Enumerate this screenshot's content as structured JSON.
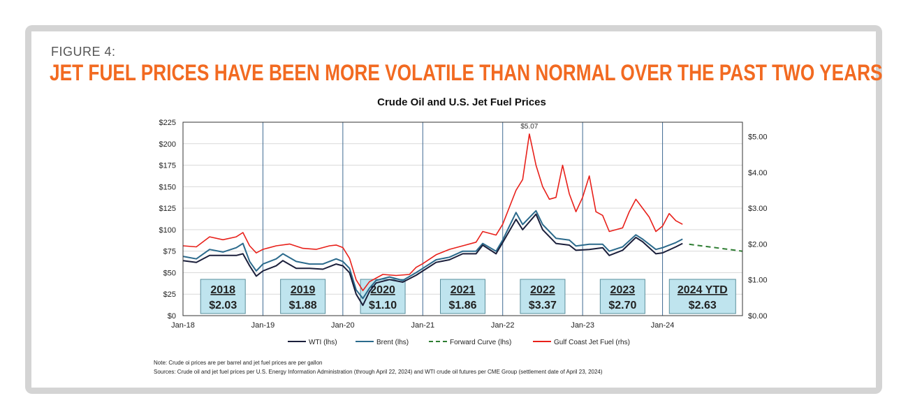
{
  "figure": {
    "label": "FIGURE 4:",
    "title": "JET FUEL PRICES HAVE BEEN MORE VOLATILE THAN NORMAL OVER THE PAST TWO YEARS",
    "note": "Note: Crude oi prices are per barrel and jet fuel prices are per gallon",
    "sources": "Sources: Crude oil and jet fuel prices per U.S. Energy Information Administration (through April 22, 2024) and WTI crude oil futures per CME Group (settlement date of April 23, 2024)"
  },
  "colors": {
    "title": "#f26a21",
    "wti": "#1b1f3b",
    "brent": "#2b6a8c",
    "forward": "#2e7d32",
    "jet": "#e8201a",
    "yearbox": "#bfe4ee"
  },
  "chart_data": {
    "type": "line",
    "title": "Crude Oil and U.S. Jet Fuel Prices",
    "x_ticks": [
      "Jan-18",
      "Jan-19",
      "Jan-20",
      "Jan-21",
      "Jan-22",
      "Jan-23",
      "Jan-24"
    ],
    "xlim": [
      "2018-01",
      "2025-01"
    ],
    "y_left": {
      "ylim": [
        0,
        225
      ],
      "ticks": [
        "$0",
        "$25",
        "$50",
        "$75",
        "$100",
        "$125",
        "$150",
        "$175",
        "$200",
        "$225"
      ]
    },
    "y_right": {
      "ylim": [
        0,
        5.4
      ],
      "ticks": [
        "$0.00",
        "$1.00",
        "$2.00",
        "$3.00",
        "$4.00",
        "$5.00"
      ]
    },
    "grid": true,
    "legend_position": "bottom",
    "peak_annotation": {
      "text": "$5.07",
      "x": "2022-05",
      "y": 5.07
    },
    "year_boxes": [
      {
        "year": "2018",
        "price": "$2.03"
      },
      {
        "year": "2019",
        "price": "$1.88"
      },
      {
        "year": "2020",
        "price": "$1.10"
      },
      {
        "year": "2021",
        "price": "$1.86"
      },
      {
        "year": "2022",
        "price": "$3.37"
      },
      {
        "year": "2023",
        "price": "$2.70"
      },
      {
        "year": "2024 YTD",
        "price": "$2.63"
      }
    ],
    "series": [
      {
        "name": "WTI (lhs)",
        "axis": "left",
        "style": "solid",
        "points": [
          [
            "2018-01",
            64
          ],
          [
            "2018-03",
            62
          ],
          [
            "2018-05",
            70
          ],
          [
            "2018-07",
            70
          ],
          [
            "2018-09",
            70
          ],
          [
            "2018-10",
            72
          ],
          [
            "2018-11",
            58
          ],
          [
            "2018-12",
            46
          ],
          [
            "2019-01",
            52
          ],
          [
            "2019-03",
            58
          ],
          [
            "2019-04",
            64
          ],
          [
            "2019-06",
            55
          ],
          [
            "2019-08",
            55
          ],
          [
            "2019-10",
            54
          ],
          [
            "2019-12",
            60
          ],
          [
            "2020-01",
            58
          ],
          [
            "2020-02",
            50
          ],
          [
            "2020-03",
            25
          ],
          [
            "2020-04",
            12
          ],
          [
            "2020-05",
            28
          ],
          [
            "2020-06",
            38
          ],
          [
            "2020-08",
            42
          ],
          [
            "2020-10",
            39
          ],
          [
            "2020-12",
            47
          ],
          [
            "2021-01",
            52
          ],
          [
            "2021-03",
            62
          ],
          [
            "2021-05",
            65
          ],
          [
            "2021-07",
            72
          ],
          [
            "2021-09",
            72
          ],
          [
            "2021-10",
            82
          ],
          [
            "2021-12",
            72
          ],
          [
            "2022-01",
            85
          ],
          [
            "2022-03",
            112
          ],
          [
            "2022-04",
            100
          ],
          [
            "2022-06",
            118
          ],
          [
            "2022-07",
            100
          ],
          [
            "2022-09",
            84
          ],
          [
            "2022-11",
            82
          ],
          [
            "2022-12",
            76
          ],
          [
            "2023-02",
            77
          ],
          [
            "2023-04",
            79
          ],
          [
            "2023-05",
            70
          ],
          [
            "2023-07",
            76
          ],
          [
            "2023-09",
            91
          ],
          [
            "2023-10",
            86
          ],
          [
            "2023-12",
            72
          ],
          [
            "2024-01",
            73
          ],
          [
            "2024-03",
            80
          ],
          [
            "2024-04",
            84
          ]
        ]
      },
      {
        "name": "Brent (lhs)",
        "axis": "left",
        "style": "solid",
        "points": [
          [
            "2018-01",
            69
          ],
          [
            "2018-03",
            66
          ],
          [
            "2018-05",
            77
          ],
          [
            "2018-07",
            74
          ],
          [
            "2018-09",
            79
          ],
          [
            "2018-10",
            84
          ],
          [
            "2018-11",
            63
          ],
          [
            "2018-12",
            52
          ],
          [
            "2019-01",
            60
          ],
          [
            "2019-03",
            66
          ],
          [
            "2019-04",
            72
          ],
          [
            "2019-06",
            63
          ],
          [
            "2019-08",
            60
          ],
          [
            "2019-10",
            60
          ],
          [
            "2019-12",
            66
          ],
          [
            "2020-01",
            63
          ],
          [
            "2020-02",
            55
          ],
          [
            "2020-03",
            30
          ],
          [
            "2020-04",
            20
          ],
          [
            "2020-05",
            32
          ],
          [
            "2020-06",
            41
          ],
          [
            "2020-08",
            45
          ],
          [
            "2020-10",
            41
          ],
          [
            "2020-12",
            50
          ],
          [
            "2021-01",
            55
          ],
          [
            "2021-03",
            65
          ],
          [
            "2021-05",
            68
          ],
          [
            "2021-07",
            75
          ],
          [
            "2021-09",
            75
          ],
          [
            "2021-10",
            84
          ],
          [
            "2021-12",
            75
          ],
          [
            "2022-01",
            88
          ],
          [
            "2022-03",
            120
          ],
          [
            "2022-04",
            106
          ],
          [
            "2022-06",
            122
          ],
          [
            "2022-07",
            106
          ],
          [
            "2022-09",
            90
          ],
          [
            "2022-11",
            88
          ],
          [
            "2022-12",
            81
          ],
          [
            "2023-02",
            83
          ],
          [
            "2023-04",
            83
          ],
          [
            "2023-05",
            75
          ],
          [
            "2023-07",
            80
          ],
          [
            "2023-09",
            94
          ],
          [
            "2023-10",
            89
          ],
          [
            "2023-12",
            77
          ],
          [
            "2024-01",
            79
          ],
          [
            "2024-03",
            85
          ],
          [
            "2024-04",
            89
          ]
        ]
      },
      {
        "name": "Forward Curve (lhs)",
        "axis": "left",
        "style": "dashed",
        "points": [
          [
            "2024-05",
            83
          ],
          [
            "2024-08",
            80
          ],
          [
            "2024-11",
            77
          ],
          [
            "2025-01",
            75
          ]
        ]
      },
      {
        "name": "Gulf Coast Jet Fuel (rhs)",
        "axis": "right",
        "style": "solid",
        "points": [
          [
            "2018-01",
            1.95
          ],
          [
            "2018-03",
            1.92
          ],
          [
            "2018-05",
            2.2
          ],
          [
            "2018-07",
            2.12
          ],
          [
            "2018-09",
            2.2
          ],
          [
            "2018-10",
            2.32
          ],
          [
            "2018-11",
            1.95
          ],
          [
            "2018-12",
            1.75
          ],
          [
            "2019-01",
            1.85
          ],
          [
            "2019-03",
            1.95
          ],
          [
            "2019-05",
            2.0
          ],
          [
            "2019-07",
            1.88
          ],
          [
            "2019-09",
            1.85
          ],
          [
            "2019-11",
            1.95
          ],
          [
            "2019-12",
            1.97
          ],
          [
            "2020-01",
            1.9
          ],
          [
            "2020-02",
            1.6
          ],
          [
            "2020-03",
            1.0
          ],
          [
            "2020-04",
            0.7
          ],
          [
            "2020-05",
            0.95
          ],
          [
            "2020-07",
            1.15
          ],
          [
            "2020-09",
            1.12
          ],
          [
            "2020-11",
            1.15
          ],
          [
            "2020-12",
            1.35
          ],
          [
            "2021-01",
            1.45
          ],
          [
            "2021-03",
            1.7
          ],
          [
            "2021-05",
            1.85
          ],
          [
            "2021-07",
            1.95
          ],
          [
            "2021-09",
            2.05
          ],
          [
            "2021-10",
            2.35
          ],
          [
            "2021-12",
            2.25
          ],
          [
            "2022-01",
            2.55
          ],
          [
            "2022-03",
            3.5
          ],
          [
            "2022-04",
            3.8
          ],
          [
            "2022-05",
            5.07
          ],
          [
            "2022-06",
            4.2
          ],
          [
            "2022-07",
            3.6
          ],
          [
            "2022-08",
            3.25
          ],
          [
            "2022-09",
            3.3
          ],
          [
            "2022-10",
            4.2
          ],
          [
            "2022-11",
            3.4
          ],
          [
            "2022-12",
            2.9
          ],
          [
            "2023-01",
            3.3
          ],
          [
            "2023-02",
            3.9
          ],
          [
            "2023-03",
            2.9
          ],
          [
            "2023-04",
            2.8
          ],
          [
            "2023-05",
            2.35
          ],
          [
            "2023-07",
            2.45
          ],
          [
            "2023-08",
            2.9
          ],
          [
            "2023-09",
            3.25
          ],
          [
            "2023-10",
            3.0
          ],
          [
            "2023-11",
            2.75
          ],
          [
            "2023-12",
            2.35
          ],
          [
            "2024-01",
            2.5
          ],
          [
            "2024-02",
            2.85
          ],
          [
            "2024-03",
            2.65
          ],
          [
            "2024-04",
            2.55
          ]
        ]
      }
    ]
  }
}
